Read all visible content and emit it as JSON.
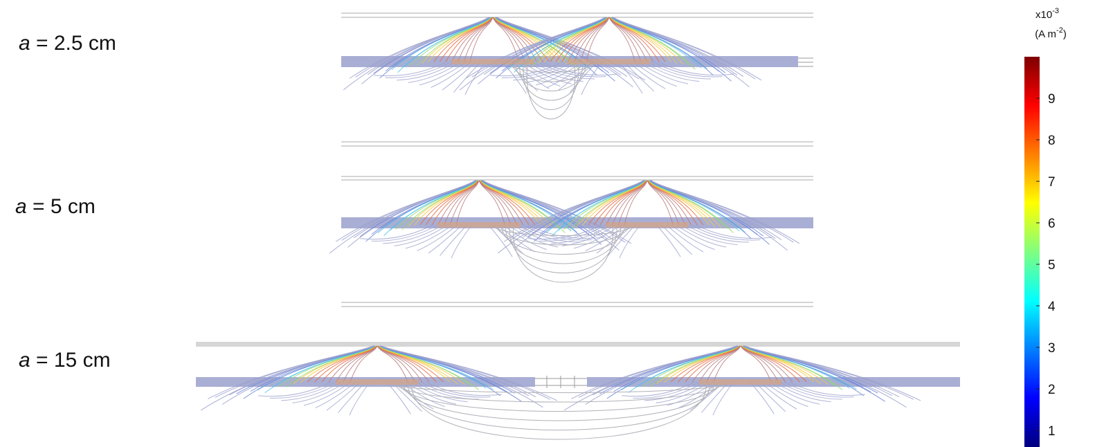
{
  "panels": [
    {
      "label_var": "a",
      "label_rest": " = 2.5 cm",
      "geom": "short",
      "sources": [
        {
          "x": 712,
          "sign": 1
        },
        {
          "x": 880,
          "sign": -1
        }
      ]
    },
    {
      "label_var": "a",
      "label_rest": " = 5 cm",
      "geom": "short",
      "sources": [
        {
          "x": 692,
          "sign": 1
        },
        {
          "x": 935,
          "sign": -1
        }
      ]
    },
    {
      "label_var": "a",
      "label_rest": " = 15 cm",
      "geom": "long",
      "sources": [
        {
          "x": 545,
          "sign": 1
        },
        {
          "x": 1070,
          "sign": -1
        }
      ]
    }
  ],
  "colorbar": {
    "multiplier_base": "x10",
    "multiplier_exp": "-3",
    "unit_open": "(A m",
    "unit_exp": "-2",
    "unit_close": ")",
    "min": 0.6,
    "max": 10,
    "ticks": [
      {
        "value": 1,
        "label": "1"
      },
      {
        "value": 2,
        "label": "2"
      },
      {
        "value": 3,
        "label": "3"
      },
      {
        "value": 4,
        "label": "4"
      },
      {
        "value": 5,
        "label": "5"
      },
      {
        "value": 6,
        "label": "6"
      },
      {
        "value": 7,
        "label": "7"
      },
      {
        "value": 8,
        "label": "8"
      },
      {
        "value": 9,
        "label": "9"
      }
    ],
    "colors": [
      "#00007f",
      "#0000ff",
      "#007fff",
      "#00ffff",
      "#7fff7f",
      "#ffff00",
      "#ff7f00",
      "#ff0000",
      "#7f0000"
    ]
  }
}
